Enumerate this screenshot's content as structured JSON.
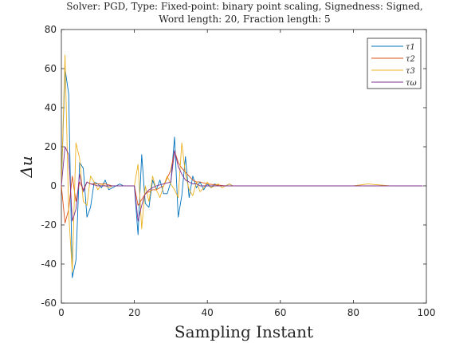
{
  "chart_data": {
    "type": "line",
    "title_lines": [
      "Solver: PGD, Type: Fixed-point: binary point scaling, Signedness: Signed,",
      "Word length: 20, Fraction length: 5"
    ],
    "xlabel": "Sampling Instant",
    "ylabel": "Δu",
    "xlim": [
      0,
      100
    ],
    "ylim": [
      -60,
      80
    ],
    "xticks": [
      0,
      20,
      40,
      60,
      80,
      100
    ],
    "yticks": [
      -60,
      -40,
      -20,
      0,
      20,
      40,
      60,
      80
    ],
    "grid": false,
    "legend": "top-right",
    "series": [
      {
        "name": "τ1",
        "color": "#0072BD",
        "x": [
          0,
          1,
          2,
          3,
          4,
          5,
          6,
          7,
          8,
          9,
          10,
          11,
          12,
          13,
          14,
          15,
          16,
          17,
          18,
          19,
          20,
          21,
          22,
          23,
          24,
          25,
          26,
          27,
          28,
          29,
          30,
          31,
          32,
          33,
          34,
          35,
          36,
          37,
          38,
          39,
          40,
          41,
          42,
          43,
          44,
          45,
          46,
          47,
          48,
          50,
          55,
          60,
          70,
          80,
          90,
          99
        ],
        "values": [
          0,
          60,
          47,
          -47,
          -38,
          12,
          9,
          -16,
          -11,
          2,
          1,
          -1,
          3,
          -2,
          -1,
          0,
          1,
          0,
          0,
          0,
          0,
          -25,
          16,
          -9,
          -11,
          3,
          -2,
          3,
          -4,
          -4,
          2,
          25,
          -16,
          -5,
          15,
          -6,
          5,
          -1,
          2,
          -2,
          1,
          -1,
          1,
          0,
          0,
          0,
          1,
          0,
          0,
          0,
          0,
          0,
          0,
          0,
          0,
          0
        ]
      },
      {
        "name": "τ2",
        "color": "#D95319",
        "x": [
          0,
          1,
          2,
          3,
          4,
          5,
          6,
          7,
          8,
          9,
          10,
          12,
          14,
          16,
          18,
          20,
          21,
          22,
          23,
          24,
          25,
          26,
          27,
          28,
          30,
          31,
          32,
          33,
          34,
          35,
          36,
          37,
          38,
          40,
          45,
          50,
          60,
          70,
          80,
          90,
          99
        ],
        "values": [
          0,
          -19,
          -12,
          5,
          -8,
          2,
          -2,
          2,
          1,
          1,
          1,
          1,
          0,
          0,
          0,
          0,
          -10,
          -7,
          -4,
          -3,
          -2,
          -2,
          -1,
          0,
          8,
          18,
          12,
          9,
          7,
          5,
          3,
          2,
          2,
          1,
          0,
          0,
          0,
          0,
          0,
          0,
          0
        ]
      },
      {
        "name": "τ3",
        "color": "#EDB120",
        "x": [
          0,
          1,
          2,
          3,
          4,
          5,
          6,
          7,
          8,
          9,
          10,
          11,
          12,
          13,
          14,
          15,
          16,
          17,
          18,
          19,
          20,
          21,
          22,
          23,
          24,
          25,
          26,
          27,
          28,
          29,
          30,
          31,
          32,
          33,
          34,
          35,
          36,
          37,
          38,
          39,
          40,
          41,
          42,
          43,
          44,
          45,
          46,
          47,
          48,
          50,
          55,
          60,
          70,
          80,
          84,
          90,
          99
        ],
        "values": [
          0,
          67,
          -14,
          -44,
          22,
          14,
          -8,
          -10,
          5,
          2,
          -2,
          1,
          0,
          -1,
          0,
          0,
          0,
          0,
          0,
          0,
          0,
          11,
          -22,
          0,
          -8,
          5,
          -2,
          -6,
          0,
          5,
          1,
          -2,
          -6,
          22,
          6,
          -2,
          -5,
          2,
          -3,
          -1,
          2,
          -1,
          0,
          1,
          -1,
          0,
          1,
          0,
          0,
          0,
          0,
          0,
          0,
          0,
          1,
          0,
          0
        ]
      },
      {
        "name": "τω",
        "color": "#7E2F8E",
        "x": [
          0,
          1,
          2,
          3,
          4,
          5,
          6,
          7,
          8,
          10,
          12,
          15,
          18,
          20,
          21,
          22,
          23,
          24,
          25,
          26,
          28,
          30,
          31,
          32,
          33,
          34,
          35,
          36,
          37,
          38,
          40,
          45,
          50,
          60,
          70,
          80,
          90,
          99
        ],
        "values": [
          0,
          20,
          16,
          -18,
          -12,
          6,
          -3,
          2,
          1,
          0,
          0,
          0,
          0,
          0,
          -18,
          -10,
          -4,
          -2,
          -1,
          0,
          1,
          2,
          18,
          10,
          6,
          3,
          2,
          1,
          1,
          0,
          0,
          0,
          0,
          0,
          0,
          0,
          0,
          0
        ]
      }
    ]
  }
}
